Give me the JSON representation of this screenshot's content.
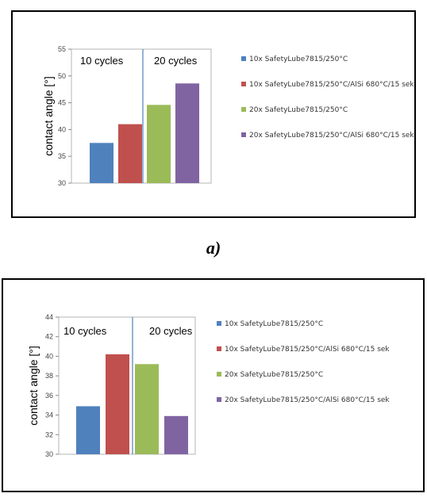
{
  "caption_a": "a)",
  "chart_data": [
    {
      "id": "a",
      "type": "bar",
      "ylabel": "contact angle [°]",
      "ylim": [
        30,
        55
      ],
      "yticks": [
        30,
        35,
        40,
        45,
        50,
        55
      ],
      "group_labels": [
        "10 cycles",
        "20 cycles"
      ],
      "series": [
        {
          "name": "10x SafetyLube7815/250°C",
          "color": "#4F81BD",
          "values": [
            37.5
          ]
        },
        {
          "name": "10x SafetyLube7815/250°C/AlSi 680°C/15 sek",
          "color": "#C0504D",
          "values": [
            41.0
          ]
        },
        {
          "name": "20x SafetyLube7815/250°C",
          "color": "#9BBB59",
          "values": [
            44.6
          ]
        },
        {
          "name": "20x SafetyLube7815/250°C/AlSi 680°C/15 sek",
          "color": "#8064A2",
          "values": [
            48.6
          ]
        }
      ]
    },
    {
      "id": "b",
      "type": "bar",
      "ylabel": "contact angle [°]",
      "ylim": [
        30,
        44
      ],
      "yticks": [
        30,
        32,
        34,
        36,
        38,
        40,
        42,
        44
      ],
      "group_labels": [
        "10 cycles",
        "20 cycles"
      ],
      "series": [
        {
          "name": "10x SafetyLube7815/250°C",
          "color": "#4F81BD",
          "values": [
            34.9
          ]
        },
        {
          "name": "10x SafetyLube7815/250°C/AlSi 680°C/15 sek",
          "color": "#C0504D",
          "values": [
            40.2
          ]
        },
        {
          "name": "20x SafetyLube7815/250°C",
          "color": "#9BBB59",
          "values": [
            39.2
          ]
        },
        {
          "name": "20x SafetyLube7815/250°C/AlSi 680°C/15 sek",
          "color": "#8064A2",
          "values": [
            33.9
          ]
        }
      ]
    }
  ]
}
